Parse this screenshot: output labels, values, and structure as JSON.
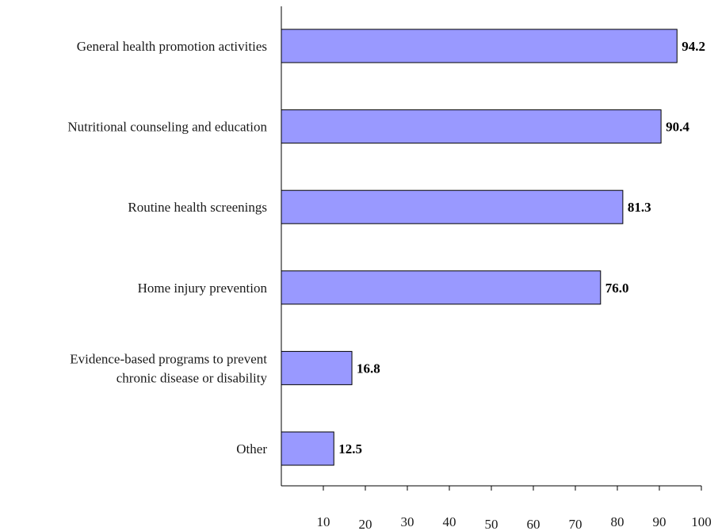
{
  "chart_data": {
    "type": "bar",
    "orientation": "horizontal",
    "categories": [
      "General health promotion activities",
      "Nutritional counseling and education",
      "Routine health screenings",
      "Home injury prevention",
      "Evidence-based programs to prevent chronic disease or disability",
      "Other"
    ],
    "category_lines": [
      [
        "General health promotion activities"
      ],
      [
        "Nutritional counseling and education"
      ],
      [
        "Routine health screenings"
      ],
      [
        "Home injury prevention"
      ],
      [
        "Evidence-based programs to prevent",
        "chronic disease or disability"
      ],
      [
        "Other"
      ]
    ],
    "values": [
      94.2,
      90.4,
      81.3,
      76.0,
      16.8,
      12.5
    ],
    "data_labels": [
      "94.2",
      "90.4",
      "81.3",
      "76.0",
      "16.8",
      "12.5"
    ],
    "xlim": [
      0,
      100
    ],
    "x_ticks": [
      10,
      20,
      30,
      40,
      50,
      60,
      70,
      80,
      90,
      100
    ],
    "title": "",
    "xlabel": "",
    "ylabel": "",
    "grid": false,
    "legend": "none",
    "bar_color": "#9999ff",
    "bar_edge_color": "#000000"
  }
}
